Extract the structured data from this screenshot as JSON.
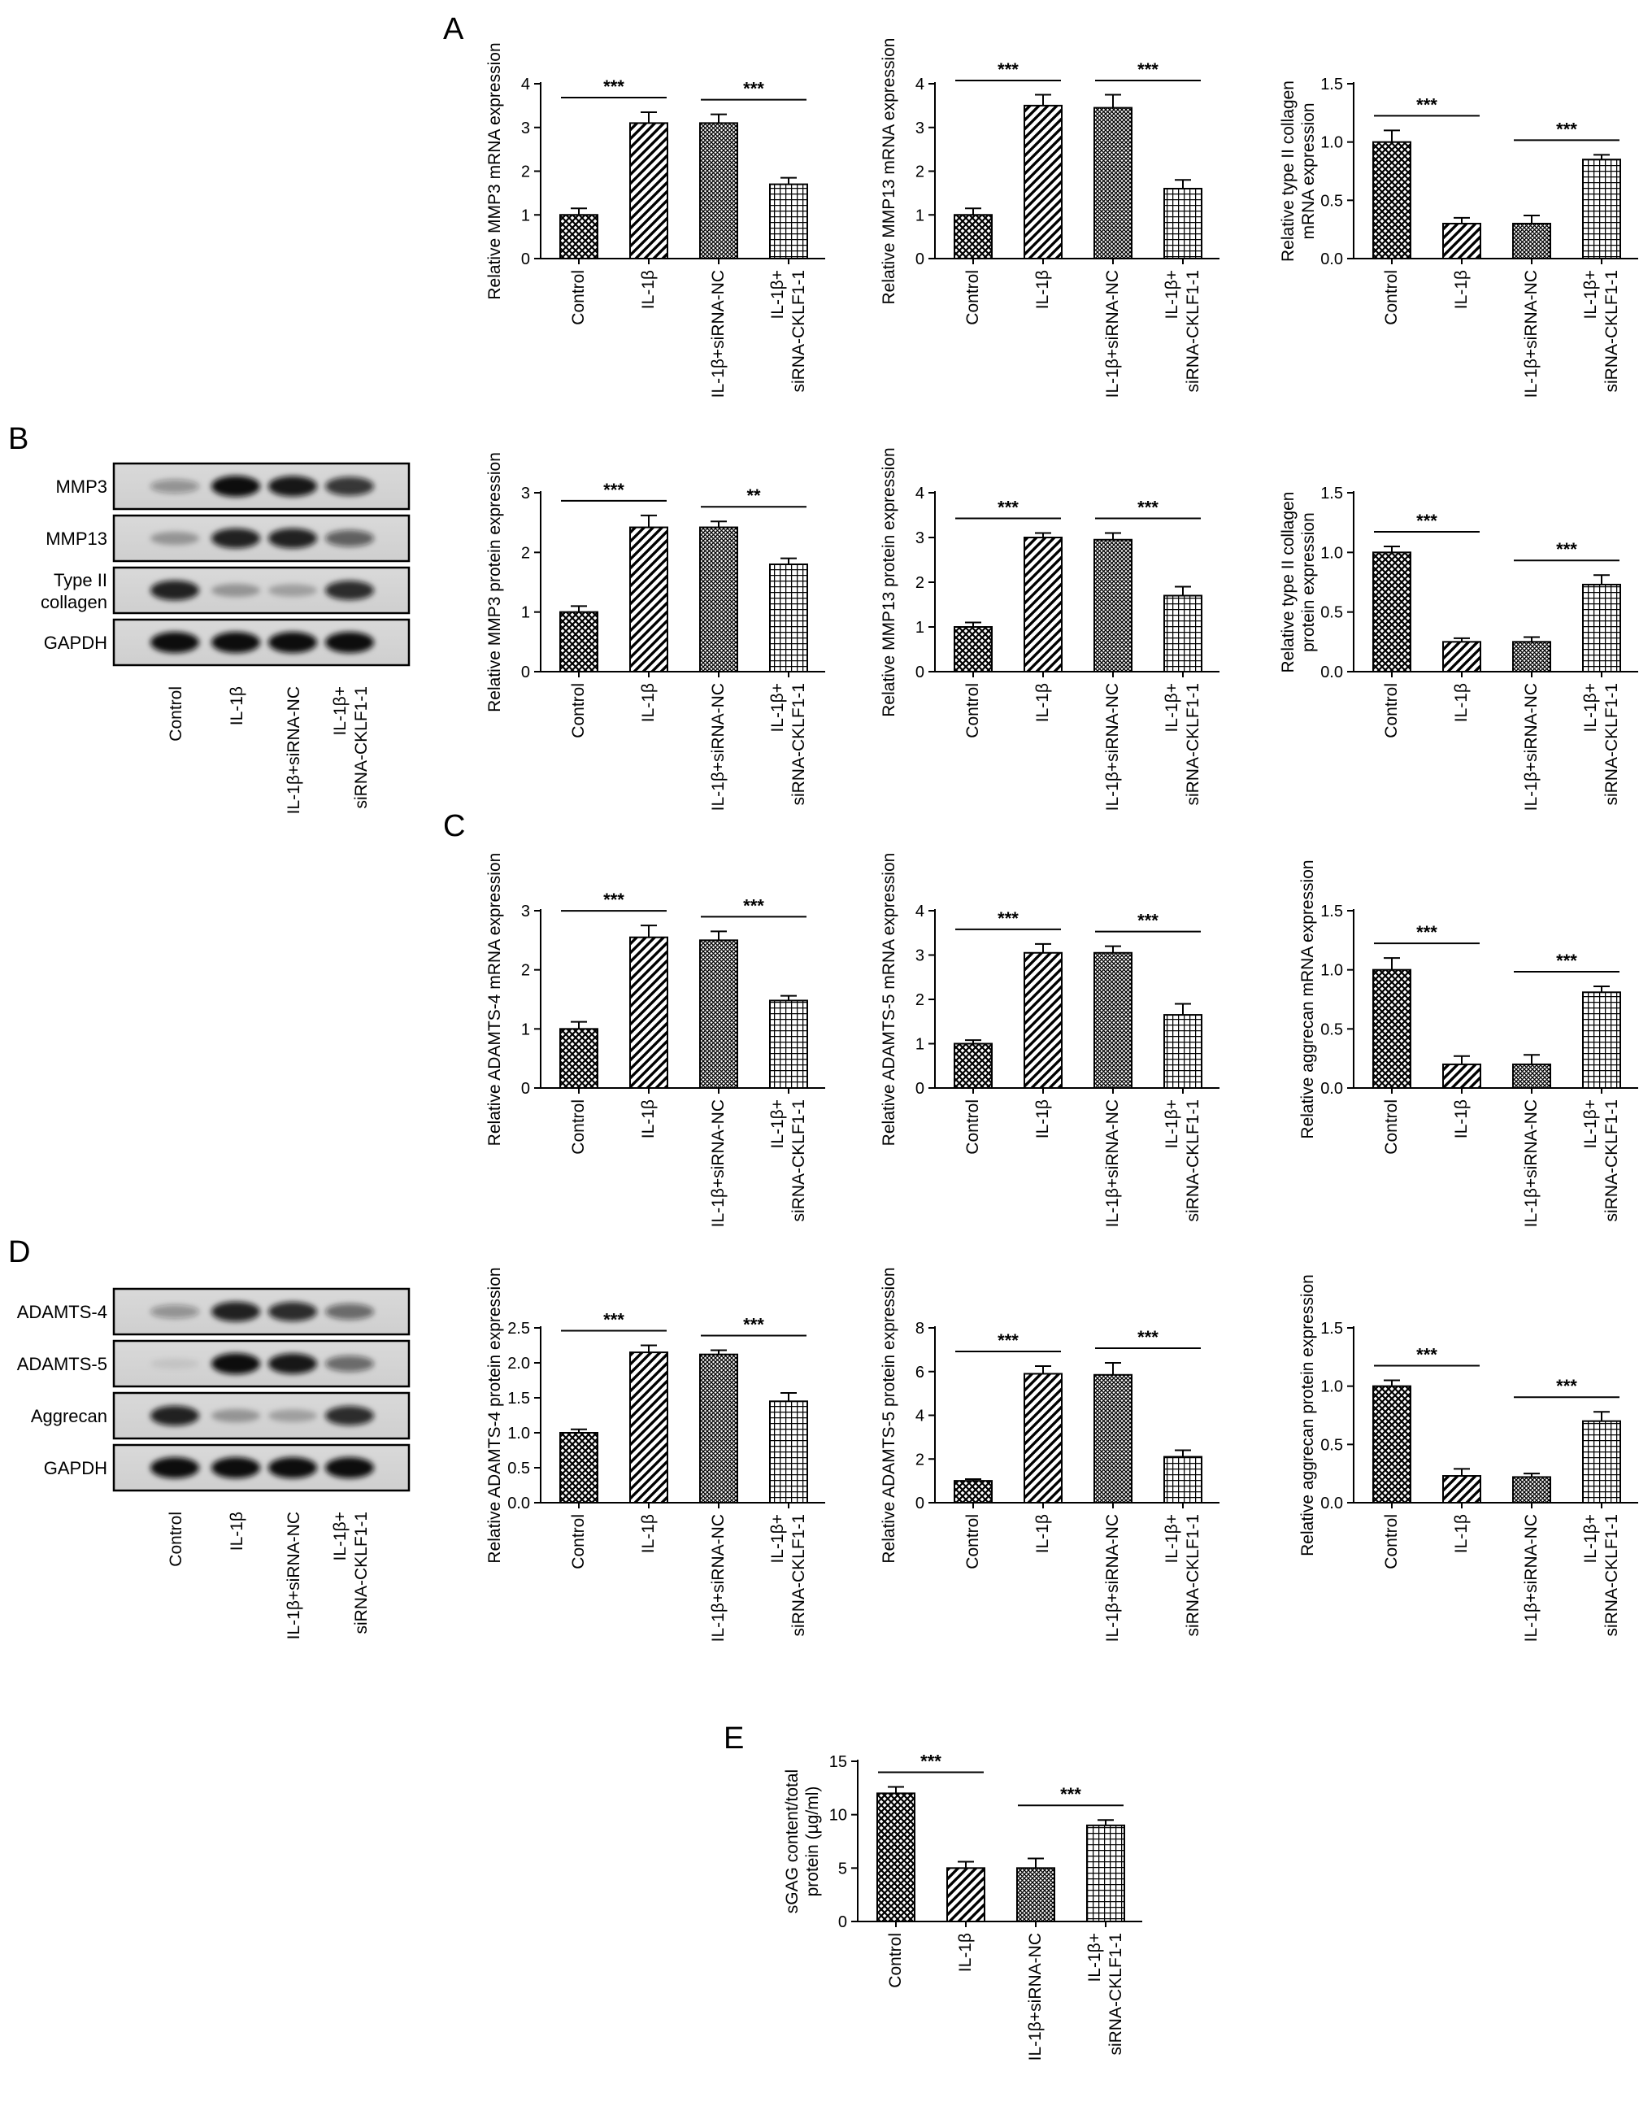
{
  "panel_letters": [
    "A",
    "B",
    "C",
    "D",
    "E"
  ],
  "categories": [
    "Control",
    "IL-1β",
    "IL-1β+siRNA-NC",
    "IL-1β+|siRNA-CKLF1-1"
  ],
  "blots": [
    {
      "letter": "B",
      "bands": [
        "MMP3",
        "MMP13",
        "Type II|collagen",
        "GAPDH"
      ],
      "band_intensity": [
        [
          0.35,
          1.0,
          0.95,
          0.8
        ],
        [
          0.3,
          0.9,
          0.9,
          0.6
        ],
        [
          0.9,
          0.3,
          0.25,
          0.85
        ],
        [
          1.0,
          1.0,
          1.0,
          1.0
        ]
      ]
    },
    {
      "letter": "D",
      "bands": [
        "ADAMTS-4",
        "ADAMTS-5",
        "Aggrecan",
        "GAPDH"
      ],
      "band_intensity": [
        [
          0.35,
          0.9,
          0.85,
          0.55
        ],
        [
          0.08,
          1.0,
          0.95,
          0.55
        ],
        [
          0.9,
          0.3,
          0.25,
          0.85
        ],
        [
          1.0,
          1.0,
          1.0,
          1.0
        ]
      ]
    }
  ],
  "chart_data": [
    {
      "panel": "A",
      "type": "bar",
      "ylabel": "Relative MMP3 mRNA expression",
      "ylim": [
        0,
        4
      ],
      "yticks": [
        "0",
        "1",
        "2",
        "3",
        "4"
      ],
      "values": [
        1.0,
        3.1,
        3.1,
        1.7
      ],
      "errors": [
        0.15,
        0.25,
        0.2,
        0.15
      ],
      "significance": [
        {
          "from": 0,
          "to": 1,
          "label": "***"
        },
        {
          "from": 2,
          "to": 3,
          "label": "***"
        }
      ]
    },
    {
      "panel": "A",
      "type": "bar",
      "ylabel": "Relative MMP13 mRNA expression",
      "ylim": [
        0,
        4
      ],
      "yticks": [
        "0",
        "1",
        "2",
        "3",
        "4"
      ],
      "values": [
        1.0,
        3.5,
        3.45,
        1.6
      ],
      "errors": [
        0.15,
        0.25,
        0.3,
        0.2
      ],
      "significance": [
        {
          "from": 0,
          "to": 1,
          "label": "***"
        },
        {
          "from": 2,
          "to": 3,
          "label": "***"
        }
      ]
    },
    {
      "panel": "A",
      "type": "bar",
      "ylabel": "Relative type II collagen|mRNA expression",
      "ylim": [
        0,
        1.5
      ],
      "yticks": [
        "0.0",
        "0.5",
        "1.0",
        "1.5"
      ],
      "values": [
        1.0,
        0.3,
        0.3,
        0.85
      ],
      "errors": [
        0.1,
        0.05,
        0.07,
        0.04
      ],
      "significance": [
        {
          "from": 0,
          "to": 1,
          "label": "***"
        },
        {
          "from": 2,
          "to": 3,
          "label": "***"
        }
      ]
    },
    {
      "panel": "B",
      "type": "bar",
      "ylabel": "Relative MMP3 protein expression",
      "ylim": [
        0,
        3
      ],
      "yticks": [
        "0",
        "1",
        "2",
        "3"
      ],
      "values": [
        1.0,
        2.42,
        2.42,
        1.8
      ],
      "errors": [
        0.1,
        0.2,
        0.1,
        0.1
      ],
      "significance": [
        {
          "from": 0,
          "to": 1,
          "label": "***"
        },
        {
          "from": 2,
          "to": 3,
          "label": "**"
        }
      ]
    },
    {
      "panel": "B",
      "type": "bar",
      "ylabel": "Relative MMP13 protein expression",
      "ylim": [
        0,
        4
      ],
      "yticks": [
        "0",
        "1",
        "2",
        "3",
        "4"
      ],
      "values": [
        1.0,
        3.0,
        2.95,
        1.7
      ],
      "errors": [
        0.1,
        0.1,
        0.15,
        0.2
      ],
      "significance": [
        {
          "from": 0,
          "to": 1,
          "label": "***"
        },
        {
          "from": 2,
          "to": 3,
          "label": "***"
        }
      ]
    },
    {
      "panel": "B",
      "type": "bar",
      "ylabel": "Relative type II collagen|protein expression",
      "ylim": [
        0,
        1.5
      ],
      "yticks": [
        "0.0",
        "0.5",
        "1.0",
        "1.5"
      ],
      "values": [
        1.0,
        0.25,
        0.25,
        0.73
      ],
      "errors": [
        0.05,
        0.03,
        0.04,
        0.08
      ],
      "significance": [
        {
          "from": 0,
          "to": 1,
          "label": "***"
        },
        {
          "from": 2,
          "to": 3,
          "label": "***"
        }
      ]
    },
    {
      "panel": "C",
      "type": "bar",
      "ylabel": "Relative ADAMTS-4 mRNA expression",
      "ylim": [
        0,
        3
      ],
      "yticks": [
        "0",
        "1",
        "2",
        "3"
      ],
      "values": [
        1.0,
        2.55,
        2.5,
        1.48
      ],
      "errors": [
        0.12,
        0.2,
        0.15,
        0.08
      ],
      "significance": [
        {
          "from": 0,
          "to": 1,
          "label": "***"
        },
        {
          "from": 2,
          "to": 3,
          "label": "***"
        }
      ]
    },
    {
      "panel": "C",
      "type": "bar",
      "ylabel": "Relative ADAMTS-5 mRNA expression",
      "ylim": [
        0,
        4
      ],
      "yticks": [
        "0",
        "1",
        "2",
        "3",
        "4"
      ],
      "values": [
        1.0,
        3.05,
        3.05,
        1.65
      ],
      "errors": [
        0.08,
        0.2,
        0.15,
        0.25
      ],
      "significance": [
        {
          "from": 0,
          "to": 1,
          "label": "***"
        },
        {
          "from": 2,
          "to": 3,
          "label": "***"
        }
      ]
    },
    {
      "panel": "C",
      "type": "bar",
      "ylabel": "Relative aggrecan mRNA expression",
      "ylim": [
        0,
        1.5
      ],
      "yticks": [
        "0.0",
        "0.5",
        "1.0",
        "1.5"
      ],
      "values": [
        1.0,
        0.2,
        0.2,
        0.81
      ],
      "errors": [
        0.1,
        0.07,
        0.08,
        0.05
      ],
      "significance": [
        {
          "from": 0,
          "to": 1,
          "label": "***"
        },
        {
          "from": 2,
          "to": 3,
          "label": "***"
        }
      ]
    },
    {
      "panel": "D",
      "type": "bar",
      "ylabel": "Relative ADAMTS-4 protein expression",
      "ylim": [
        0,
        2.5
      ],
      "yticks": [
        "0.0",
        "0.5",
        "1.0",
        "1.5",
        "2.0",
        "2.5"
      ],
      "values": [
        1.0,
        2.15,
        2.12,
        1.45
      ],
      "errors": [
        0.05,
        0.1,
        0.06,
        0.12
      ],
      "significance": [
        {
          "from": 0,
          "to": 1,
          "label": "***"
        },
        {
          "from": 2,
          "to": 3,
          "label": "***"
        }
      ]
    },
    {
      "panel": "D",
      "type": "bar",
      "ylabel": "Relative ADAMTS-5 protein expression",
      "ylim": [
        0,
        8
      ],
      "yticks": [
        "0",
        "2",
        "4",
        "6",
        "8"
      ],
      "values": [
        1.0,
        5.9,
        5.85,
        2.1
      ],
      "errors": [
        0.08,
        0.35,
        0.55,
        0.3
      ],
      "significance": [
        {
          "from": 0,
          "to": 1,
          "label": "***"
        },
        {
          "from": 2,
          "to": 3,
          "label": "***"
        }
      ]
    },
    {
      "panel": "D",
      "type": "bar",
      "ylabel": "Relative aggrecan protein expression",
      "ylim": [
        0,
        1.5
      ],
      "yticks": [
        "0.0",
        "0.5",
        "1.0",
        "1.5"
      ],
      "values": [
        1.0,
        0.23,
        0.22,
        0.7
      ],
      "errors": [
        0.05,
        0.06,
        0.03,
        0.08
      ],
      "significance": [
        {
          "from": 0,
          "to": 1,
          "label": "***"
        },
        {
          "from": 2,
          "to": 3,
          "label": "***"
        }
      ]
    },
    {
      "panel": "E",
      "type": "bar",
      "ylabel": "sGAG content/total|protein (µg/ml)",
      "ylim": [
        0,
        15
      ],
      "yticks": [
        "0",
        "5",
        "10",
        "15"
      ],
      "values": [
        12.0,
        5.0,
        5.0,
        9.0
      ],
      "errors": [
        0.6,
        0.6,
        0.9,
        0.5
      ],
      "significance": [
        {
          "from": 0,
          "to": 1,
          "label": "***"
        },
        {
          "from": 2,
          "to": 3,
          "label": "***"
        }
      ]
    }
  ]
}
